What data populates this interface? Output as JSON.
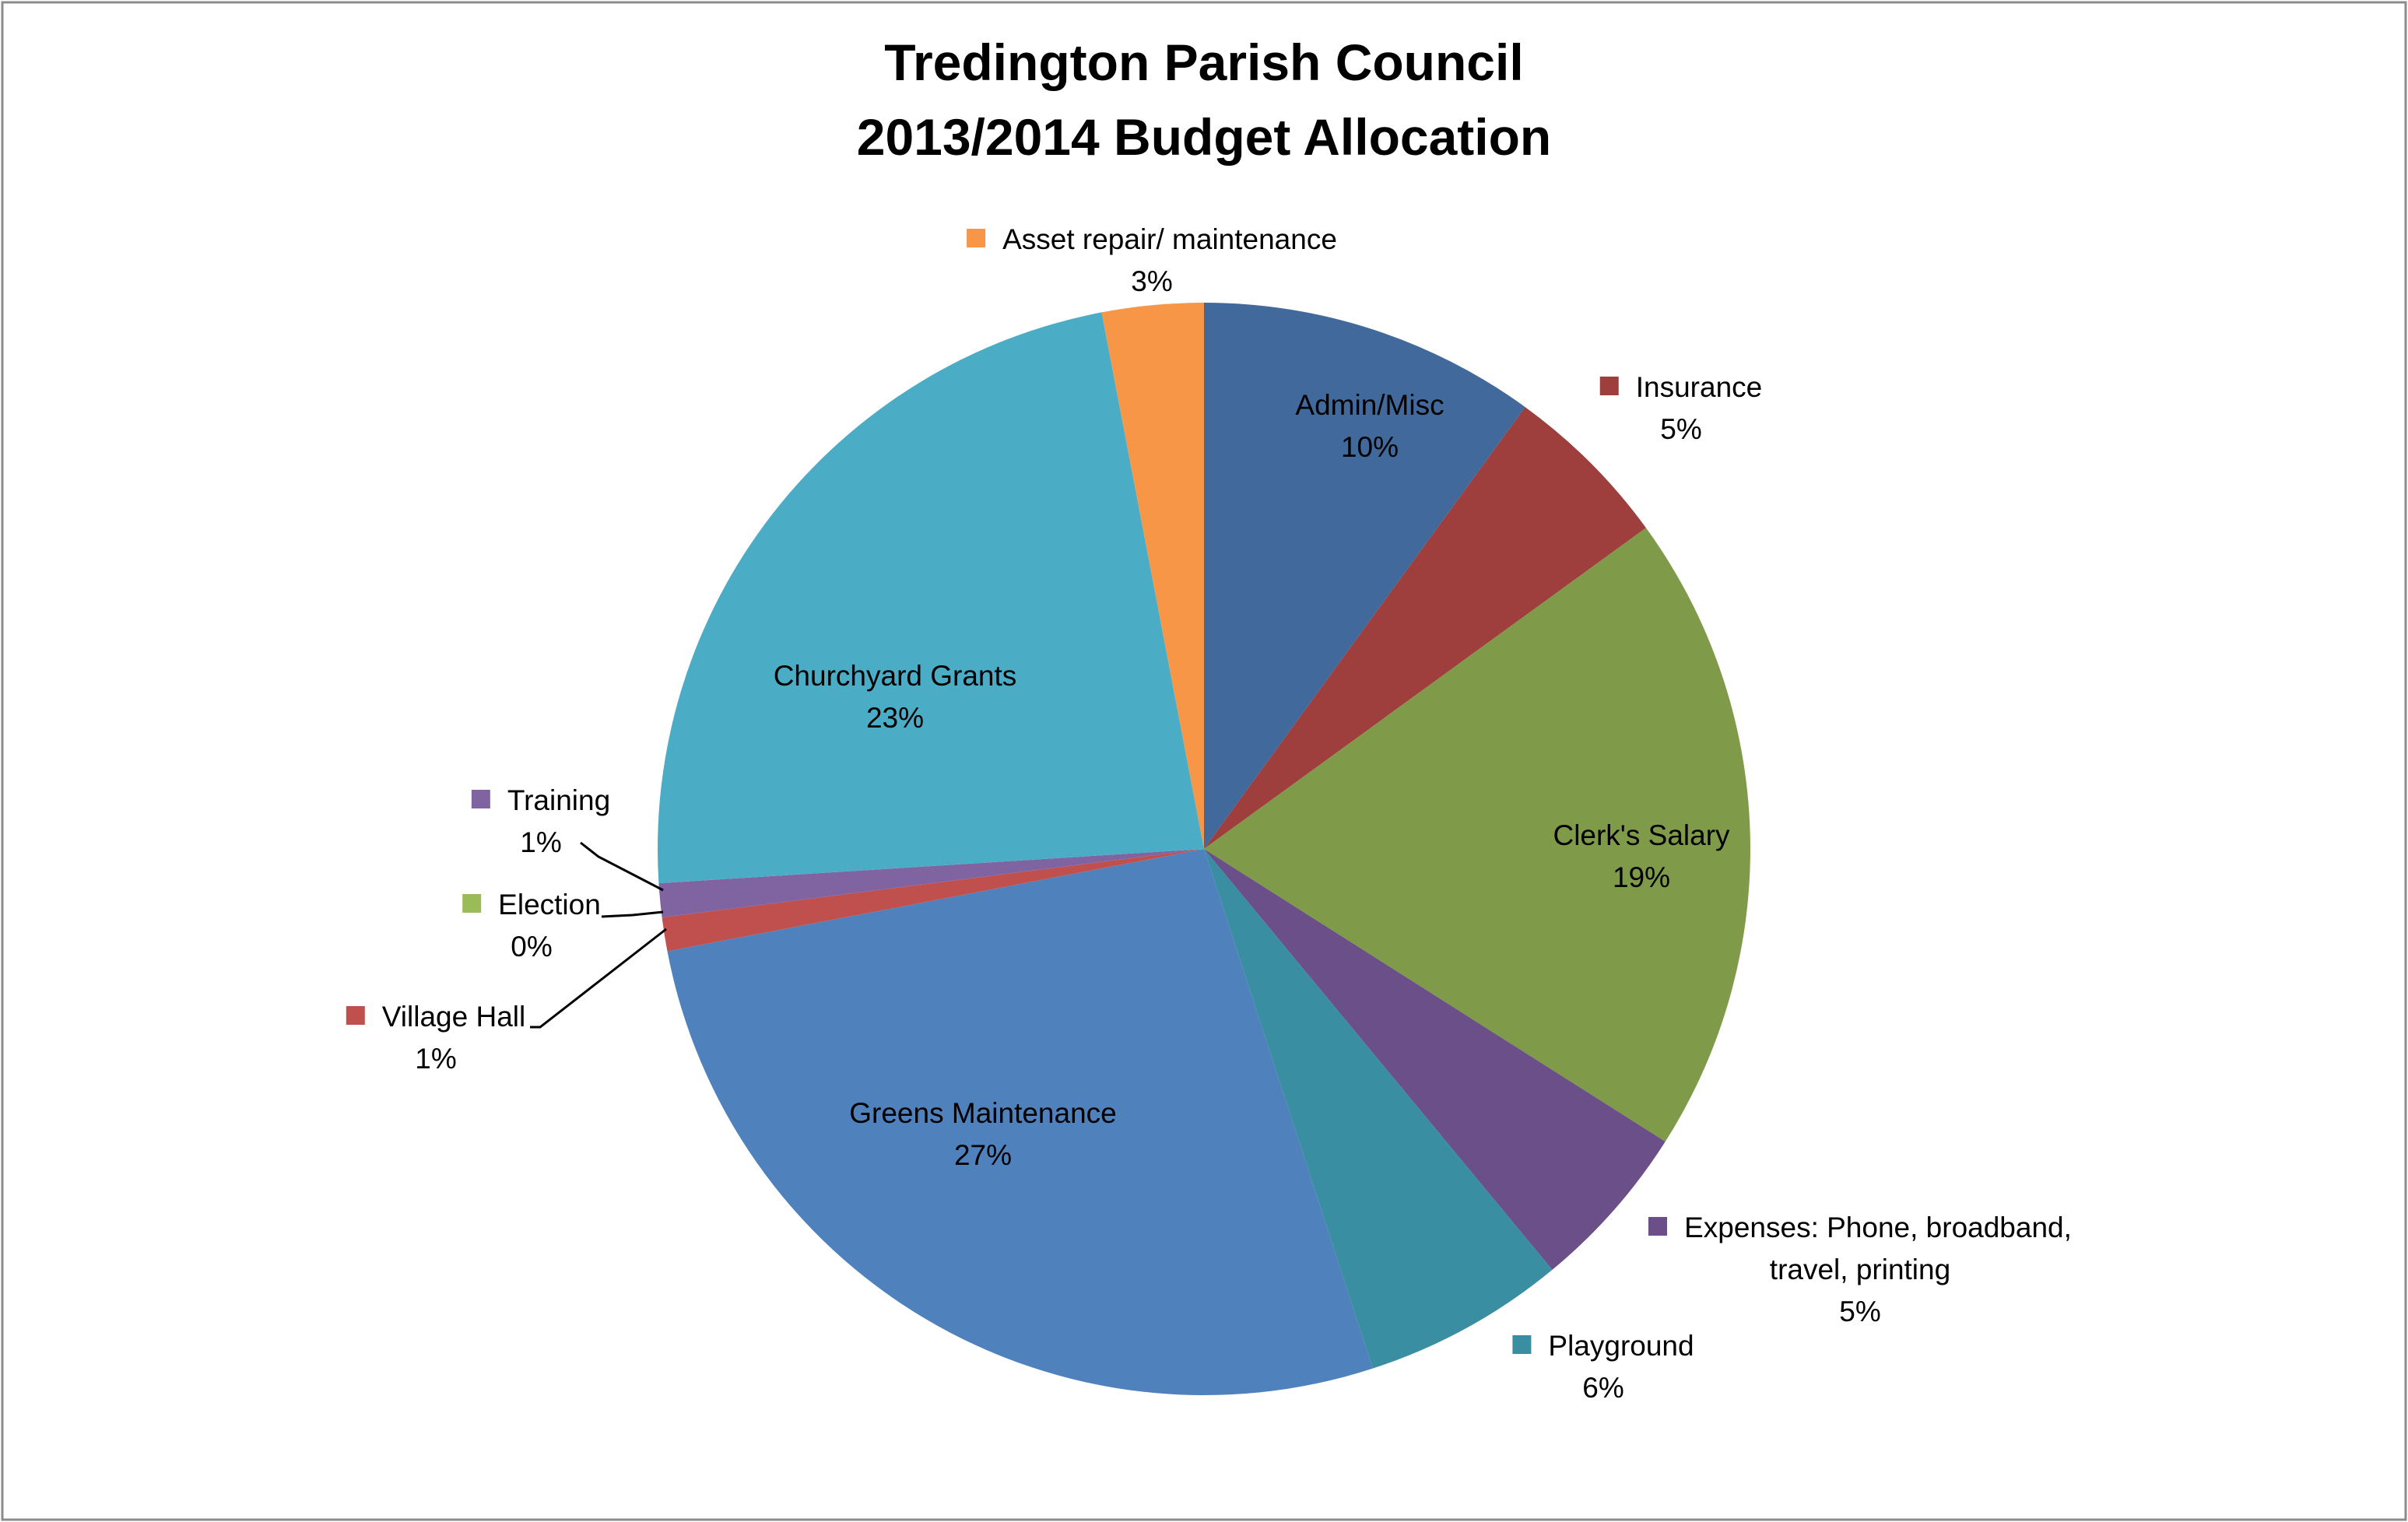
{
  "chart_data": {
    "type": "pie",
    "title": [
      "Tredington Parish Council",
      "2013/2014 Budget Allocation"
    ],
    "categories": [
      "Admin/Misc",
      "Insurance",
      "Clerk's Salary",
      "Expenses: Phone, broadband, travel, printing",
      "Playground",
      "Greens Maintenance",
      "Village Hall",
      "Election",
      "Training",
      "Churchyard Grants",
      "Asset repair/ maintenance"
    ],
    "values": [
      10,
      5,
      19,
      5,
      6,
      27,
      1,
      0,
      1,
      23,
      3
    ],
    "value_labels": [
      "10%",
      "5%",
      "19%",
      "5%",
      "6%",
      "27%",
      "1%",
      "0%",
      "1%",
      "23%",
      "3%"
    ],
    "colors": [
      "#41699c",
      "#9e3f3d",
      "#7f9a48",
      "#6a4f89",
      "#3a8ea1",
      "#4f81bd",
      "#c0504d",
      "#9bbb59",
      "#8064a2",
      "#4bacc6",
      "#f79646"
    ]
  }
}
